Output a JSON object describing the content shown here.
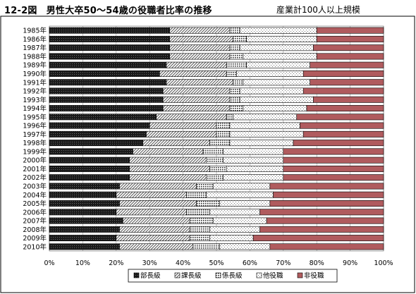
{
  "title": "12-2図　男性大卒50～54歳の役職者比率の推移",
  "subtitle": "産業計100人以上規模",
  "chart_data": {
    "type": "bar",
    "orientation": "horizontal",
    "stacked": true,
    "categories": [
      "1985年",
      "1986年",
      "1987年",
      "1988年",
      "1989年",
      "1990年",
      "1991年",
      "1992年",
      "1993年",
      "1994年",
      "1995年",
      "1996年",
      "1997年",
      "1998年",
      "1999年",
      "2000年",
      "2001年",
      "2002年",
      "2003年",
      "2004年",
      "2005年",
      "2006年",
      "2007年",
      "2008年",
      "2009年",
      "2010年"
    ],
    "series": [
      {
        "name": "部長級",
        "color": "#111111",
        "pattern": "solid-dark",
        "values": [
          36,
          36,
          36,
          36,
          35,
          33,
          35,
          34,
          34,
          34,
          32,
          30,
          29,
          28,
          25,
          24,
          24,
          24,
          21,
          20,
          21,
          20,
          22,
          21,
          20,
          21
        ]
      },
      {
        "name": "課長級",
        "color": "#cfcfcf",
        "pattern": "diagonal",
        "values": [
          18,
          19,
          18,
          18,
          18,
          20,
          20,
          20,
          20,
          20,
          21,
          20,
          21,
          20,
          21,
          23,
          24,
          23,
          23,
          21,
          23,
          21,
          20,
          21,
          22,
          22
        ]
      },
      {
        "name": "係長級",
        "color": "#8f8f8f",
        "pattern": "dotted",
        "values": [
          3,
          4,
          3,
          4,
          6,
          3,
          3,
          3,
          3,
          4,
          2,
          4,
          4,
          6,
          6,
          5,
          5,
          5,
          5,
          6,
          7,
          7,
          7,
          6,
          6,
          8
        ]
      },
      {
        "name": "他役職",
        "color": "#f2f2f2",
        "pattern": "checker",
        "values": [
          23,
          21,
          22,
          22,
          19,
          20,
          20,
          19,
          22,
          19,
          19,
          21,
          22,
          19,
          18,
          18,
          17,
          18,
          17,
          20,
          15,
          15,
          16,
          15,
          13,
          15
        ]
      },
      {
        "name": "非役職",
        "color": "#b05b5e",
        "pattern": "solid-red",
        "values": [
          20,
          20,
          21,
          20,
          22,
          24,
          22,
          24,
          21,
          23,
          26,
          25,
          24,
          27,
          30,
          30,
          30,
          30,
          34,
          33,
          34,
          37,
          35,
          37,
          39,
          34
        ]
      }
    ],
    "xlim": [
      0,
      100
    ],
    "xticks": [
      "0%",
      "10%",
      "20%",
      "30%",
      "40%",
      "50%",
      "60%",
      "70%",
      "80%",
      "90%",
      "100%"
    ],
    "grid": true,
    "legend_position": "bottom"
  }
}
